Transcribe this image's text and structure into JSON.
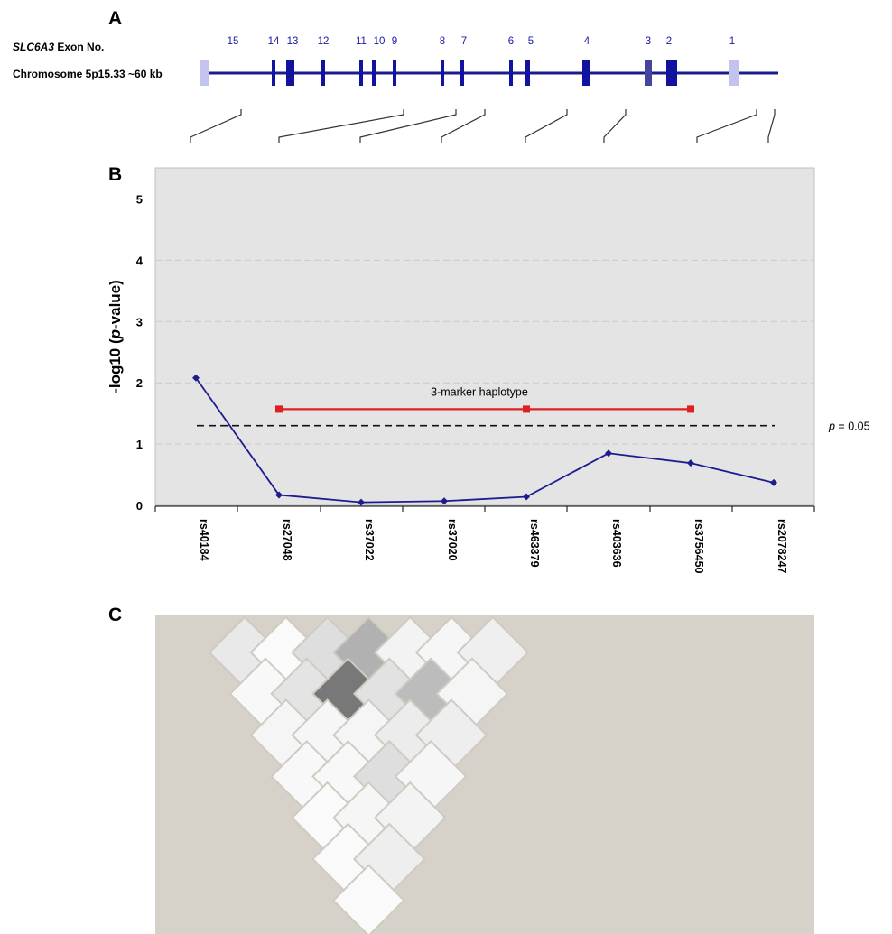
{
  "panel_a": {
    "letter": "A",
    "exon_label_gene": "SLC6A3",
    "exon_label_rest": " Exon No.",
    "chrom_label": "Chromosome 5p15.33  ~60 kb",
    "exons": [
      {
        "label": "15",
        "shade": "light"
      },
      {
        "label": "14",
        "shade": "dark"
      },
      {
        "label": "13",
        "shade": "dark"
      },
      {
        "label": "12",
        "shade": "dark"
      },
      {
        "label": "11",
        "shade": "dark"
      },
      {
        "label": "10",
        "shade": "dark"
      },
      {
        "label": "9",
        "shade": "dark"
      },
      {
        "label": "8",
        "shade": "dark"
      },
      {
        "label": "7",
        "shade": "dark"
      },
      {
        "label": "6",
        "shade": "dark"
      },
      {
        "label": "5",
        "shade": "dark"
      },
      {
        "label": "4",
        "shade": "dark"
      },
      {
        "label": "3",
        "shade": "medium"
      },
      {
        "label": "2",
        "shade": "dark"
      },
      {
        "label": "1",
        "shade": "light"
      }
    ]
  },
  "panel_b": {
    "letter": "B"
  },
  "panel_c": {
    "letter": "C"
  },
  "chart_data": {
    "type": "line",
    "ylabel": "-log10 (p-value)",
    "ylim": [
      0,
      5.5
    ],
    "yticks": [
      "0",
      "1",
      "2",
      "3",
      "4",
      "5"
    ],
    "grid": true,
    "categories": [
      "rs40184",
      "rs27048",
      "rs37022",
      "rs37020",
      "rs463379",
      "rs403636",
      "rs3756450",
      "rs2078247"
    ],
    "series": [
      {
        "values": [
          2.08,
          0.17,
          0.05,
          0.07,
          0.14,
          0.85,
          0.69,
          0.37
        ],
        "color": "#1c1c8f"
      }
    ],
    "haplotype": {
      "label": "3-marker haplotype",
      "value": 1.57,
      "markers": [
        "rs27048",
        "rs463379",
        "rs3756450"
      ],
      "color": "#e02020"
    },
    "threshold": {
      "value": 1.301,
      "label_prefix": "p",
      "label_suffix": " = 0.05"
    }
  },
  "ld_matrix": {
    "colors": {
      "background": "#d6d1c9",
      "white": "#fdfdfd"
    },
    "rows": [
      [
        0.12,
        0.02,
        0.18,
        0.45,
        0.06,
        0.04,
        0.08
      ],
      [
        0.03,
        0.15,
        0.78,
        0.16,
        0.38,
        0.05
      ],
      [
        0.05,
        0.04,
        0.05,
        0.1,
        0.09
      ],
      [
        0.03,
        0.03,
        0.18,
        0.04
      ],
      [
        0.02,
        0.04,
        0.06
      ],
      [
        0.02,
        0.09
      ],
      [
        0.02
      ]
    ]
  }
}
